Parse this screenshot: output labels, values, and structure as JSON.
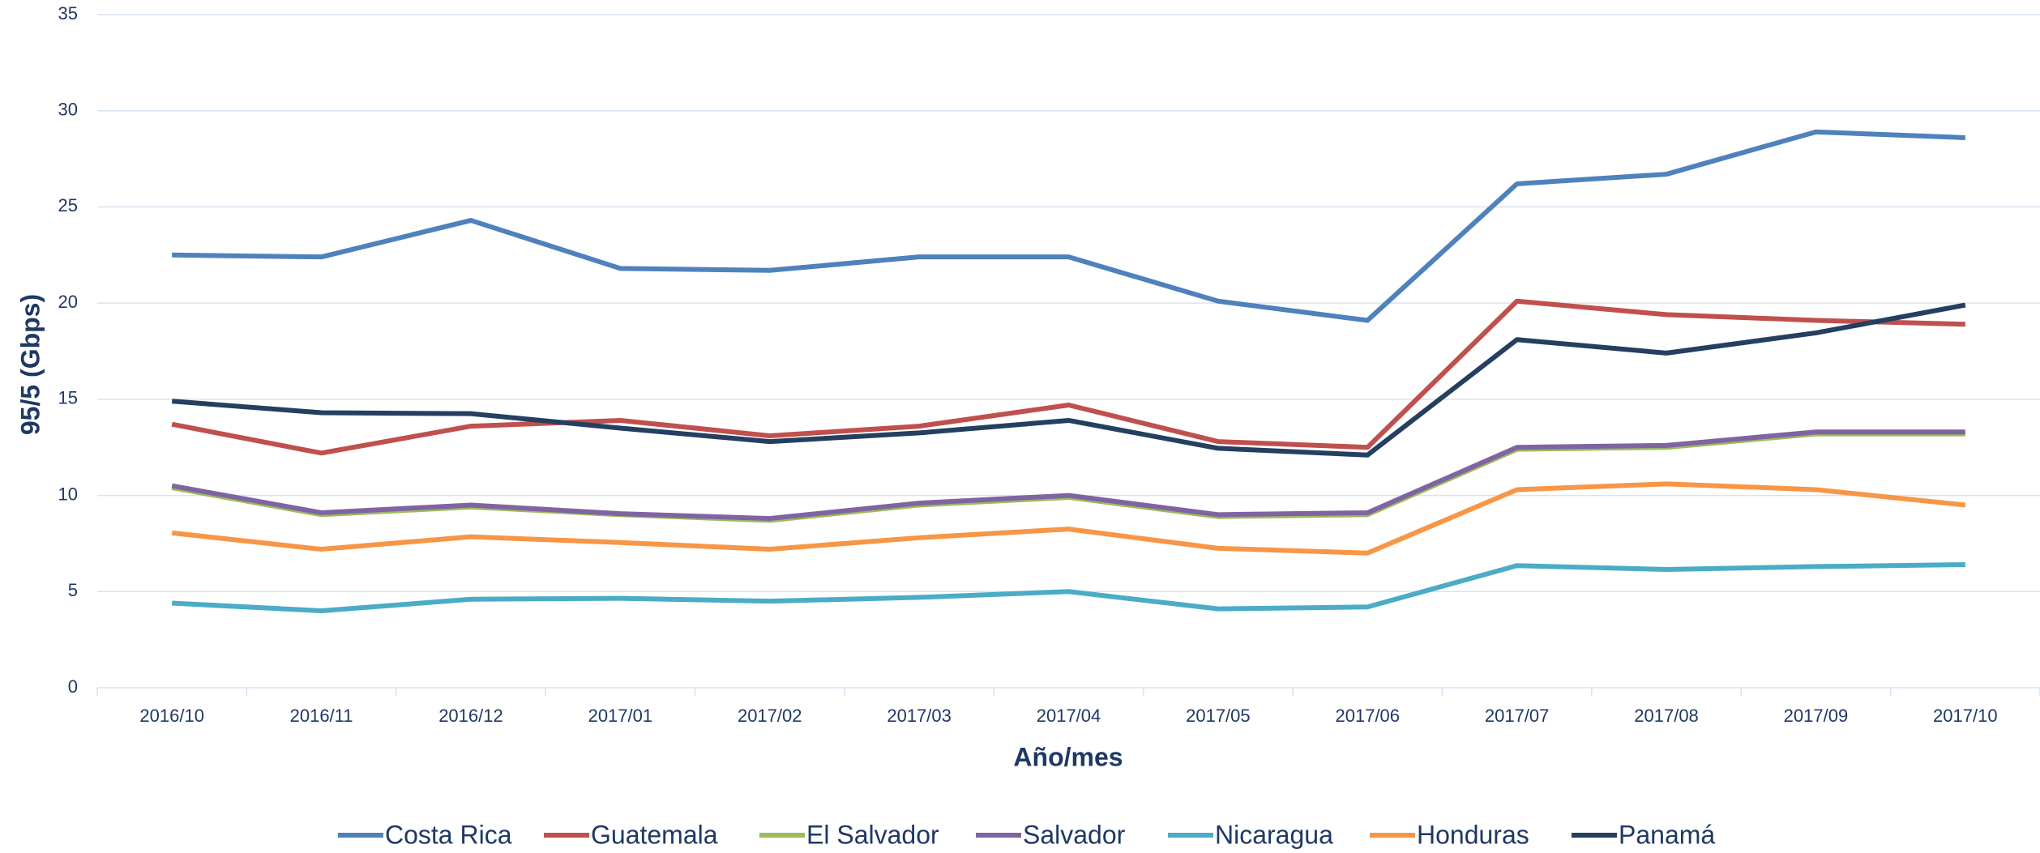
{
  "chart_data": {
    "type": "line",
    "x_label": "Año/mes",
    "y_label": "95/5 (Gbps)",
    "categories": [
      "2016/10",
      "2016/11",
      "2016/12",
      "2017/01",
      "2017/02",
      "2017/03",
      "2017/04",
      "2017/05",
      "2017/06",
      "2017/07",
      "2017/08",
      "2017/09",
      "2017/10"
    ],
    "series": [
      {
        "name": "Costa Rica",
        "color": "#4f81bd",
        "values": [
          22.5,
          22.4,
          24.3,
          21.8,
          21.7,
          22.4,
          22.4,
          20.1,
          19.1,
          26.2,
          26.7,
          28.9,
          28.6
        ]
      },
      {
        "name": "Guatemala",
        "color": "#c0504d",
        "values": [
          13.7,
          12.2,
          13.6,
          13.9,
          13.1,
          13.6,
          14.7,
          12.8,
          12.5,
          20.1,
          19.4,
          19.1,
          18.9
        ]
      },
      {
        "name": "El Salvador",
        "color": "#9bbb59",
        "values": [
          10.4,
          9.0,
          9.4,
          9.0,
          8.7,
          9.5,
          9.9,
          8.9,
          9.0,
          12.4,
          12.5,
          13.2,
          13.2
        ]
      },
      {
        "name": "Salvador",
        "color": "#8064a2",
        "values": [
          10.5,
          9.1,
          9.5,
          9.05,
          8.8,
          9.6,
          10.0,
          9.0,
          9.1,
          12.5,
          12.6,
          13.3,
          13.3
        ]
      },
      {
        "name": "Nicaragua",
        "color": "#4bacc6",
        "values": [
          4.4,
          4.0,
          4.6,
          4.65,
          4.5,
          4.7,
          5.0,
          4.1,
          4.2,
          6.35,
          6.15,
          6.3,
          6.4
        ]
      },
      {
        "name": "Honduras",
        "color": "#f79646",
        "values": [
          8.05,
          7.2,
          7.85,
          7.55,
          7.2,
          7.8,
          8.25,
          7.25,
          7.0,
          10.3,
          10.6,
          10.3,
          9.5
        ]
      },
      {
        "name": "Panamá",
        "color": "#243f60",
        "values": [
          14.9,
          14.3,
          14.25,
          13.5,
          12.8,
          13.25,
          13.9,
          12.45,
          12.1,
          18.1,
          17.4,
          18.45,
          19.9
        ]
      }
    ],
    "ylim": [
      0,
      35
    ],
    "yticks": [
      0,
      5,
      10,
      15,
      20,
      25,
      30,
      35
    ],
    "grid": true,
    "legend": "bottom"
  }
}
